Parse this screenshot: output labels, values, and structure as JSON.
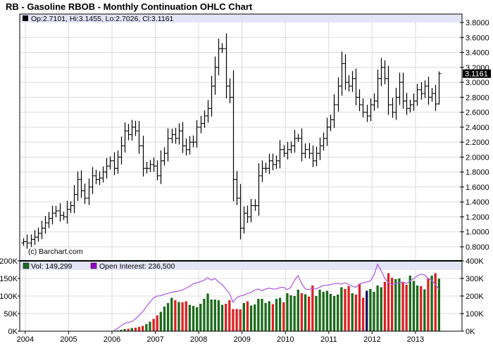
{
  "chart_data": {
    "type": "ohlc",
    "title": "RB - Gasoline RBOB - Monthly Continuation OHLC Chart",
    "credit": "(c) Barchart.com",
    "legend_price": "Op:2.7101, Hi:3.1455, Lo:2.7026, Cl:3.1161",
    "last_price_label": "3.1161",
    "start_month": "2003-12",
    "price_ylim": [
      0.8,
      3.8
    ],
    "price_ticks": [
      "3.8000",
      "3.6000",
      "3.4000",
      "3.2000",
      "3.0000",
      "2.8000",
      "2.6000",
      "2.4000",
      "2.2000",
      "2.0000",
      "1.8000",
      "1.6000",
      "1.4000",
      "1.2000",
      "1.0000",
      "0.8000"
    ],
    "closes": [
      0.87,
      0.85,
      0.9,
      0.93,
      0.98,
      1.05,
      1.12,
      1.18,
      1.25,
      1.28,
      1.22,
      1.2,
      1.3,
      1.35,
      1.5,
      1.7,
      1.55,
      1.45,
      1.6,
      1.75,
      1.7,
      1.72,
      1.8,
      1.88,
      1.95,
      1.85,
      2.0,
      2.15,
      2.35,
      2.3,
      2.4,
      2.35,
      2.15,
      1.85,
      1.85,
      1.9,
      1.88,
      1.75,
      1.95,
      2.05,
      2.25,
      2.3,
      2.25,
      2.35,
      2.15,
      2.1,
      2.2,
      2.2,
      2.4,
      2.45,
      2.55,
      2.65,
      2.95,
      3.2,
      3.45,
      3.45,
      2.95,
      2.8,
      1.7,
      1.45,
      1.05,
      1.25,
      1.2,
      1.35,
      1.35,
      1.75,
      1.85,
      1.85,
      1.95,
      1.9,
      1.95,
      2.1,
      2.05,
      2.1,
      2.15,
      2.25,
      2.25,
      2.05,
      2.1,
      2.05,
      1.95,
      2.05,
      2.15,
      2.25,
      2.4,
      2.5,
      2.7,
      2.95,
      3.25,
      3.0,
      2.95,
      3.05,
      2.8,
      2.7,
      2.6,
      2.55,
      2.7,
      2.75,
      3.05,
      3.2,
      3.05,
      2.7,
      2.6,
      2.8,
      3.0,
      2.75,
      2.65,
      2.7,
      2.75,
      2.9,
      2.85,
      2.95,
      2.8,
      2.85,
      2.71,
      3.1161
    ],
    "last_bar": {
      "open": 2.7101,
      "high": 3.1455,
      "low": 2.7026,
      "close": 3.1161
    },
    "volume_legend": "Vol: 149,299",
    "oi_legend": "Open Interest: 236,500",
    "volume_start_month": "2006-01",
    "volume_k": [
      1,
      2,
      4,
      6,
      7,
      9,
      10,
      12,
      15,
      20,
      27,
      35,
      45,
      55,
      70,
      80,
      95,
      88,
      83,
      82,
      85,
      75,
      72,
      68,
      78,
      92,
      107,
      90,
      90,
      88,
      75,
      78,
      88,
      63,
      63,
      62,
      80,
      85,
      73,
      76,
      92,
      92,
      80,
      85,
      77,
      92,
      95,
      82,
      108,
      102,
      100,
      118,
      108,
      105,
      98,
      130,
      100,
      118,
      112,
      115,
      106,
      100,
      104,
      125,
      120,
      128,
      108,
      104,
      135,
      95,
      115,
      120,
      112,
      130,
      125,
      140,
      165,
      152,
      148,
      150,
      138,
      132,
      158,
      143,
      130,
      128,
      119,
      150,
      158,
      165,
      149.299
    ],
    "open_interest_k": [
      3,
      15,
      30,
      45,
      50,
      55,
      70,
      90,
      110,
      140,
      165,
      190,
      200,
      202,
      210,
      215,
      222,
      225,
      228,
      235,
      245,
      255,
      270,
      275,
      282,
      290,
      305,
      290,
      300,
      280,
      265,
      240,
      215,
      165,
      190,
      200,
      205,
      215,
      220,
      235,
      240,
      230,
      240,
      245,
      240,
      240,
      248,
      250,
      236,
      250,
      290,
      316,
      270,
      240,
      236,
      245,
      240,
      250,
      260,
      262,
      265,
      270,
      272,
      268,
      275,
      265,
      255,
      250,
      268,
      275,
      280,
      285,
      320,
      380,
      345,
      300,
      275,
      264,
      270,
      275,
      280,
      272,
      285,
      300,
      315,
      325,
      320,
      300,
      290,
      265,
      236.5
    ],
    "volume_flat_months": [
      "2011-11"
    ],
    "volume_ylim": [
      0,
      200
    ],
    "oi_ylim": [
      0,
      400
    ],
    "volume_ticks_left": [
      "200K",
      "150K",
      "100K",
      "50K",
      "0K"
    ],
    "oi_ticks_right": [
      "400K",
      "300K",
      "200K",
      "100K",
      "0K"
    ],
    "years": [
      "2004",
      "2005",
      "2006",
      "2007",
      "2008",
      "2009",
      "2010",
      "2011",
      "2012",
      "2013"
    ],
    "colors": {
      "up": "#1a6b1a",
      "down": "#dd2020",
      "flat": "#101060",
      "oi": "#b060e0",
      "legend_band": "#e4e4f8",
      "vol_swatch": "#1a6b1a",
      "oi_swatch": "#9900cc"
    }
  }
}
